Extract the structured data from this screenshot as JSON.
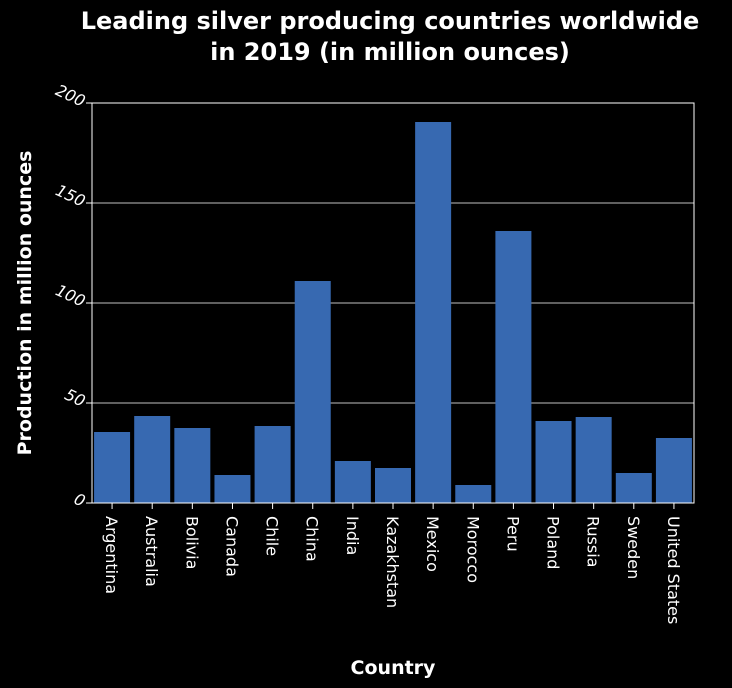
{
  "chart_data": {
    "type": "bar",
    "title_lines": [
      "Leading silver producing countries worldwide",
      "in 2019 (in million ounces)"
    ],
    "xlabel": "Country",
    "ylabel": "Production in million ounces",
    "ylim": [
      0,
      200
    ],
    "yticks": [
      0,
      50,
      100,
      150,
      200
    ],
    "grid": "horizontal",
    "categories": [
      "Argentina",
      "Australia",
      "Bolivia",
      "Canada",
      "Chile",
      "China",
      "India",
      "Kazakhstan",
      "Mexico",
      "Morocco",
      "Peru",
      "Poland",
      "Russia",
      "Sweden",
      "United States"
    ],
    "values": [
      35.5,
      43.5,
      37.5,
      14,
      38.5,
      111,
      21,
      17.5,
      190.5,
      9,
      136,
      41,
      43,
      15,
      32.5
    ],
    "colors": {
      "bar": "#3769b1",
      "background": "#000000",
      "grid": "#ffffff",
      "text": "#ffffff"
    }
  }
}
